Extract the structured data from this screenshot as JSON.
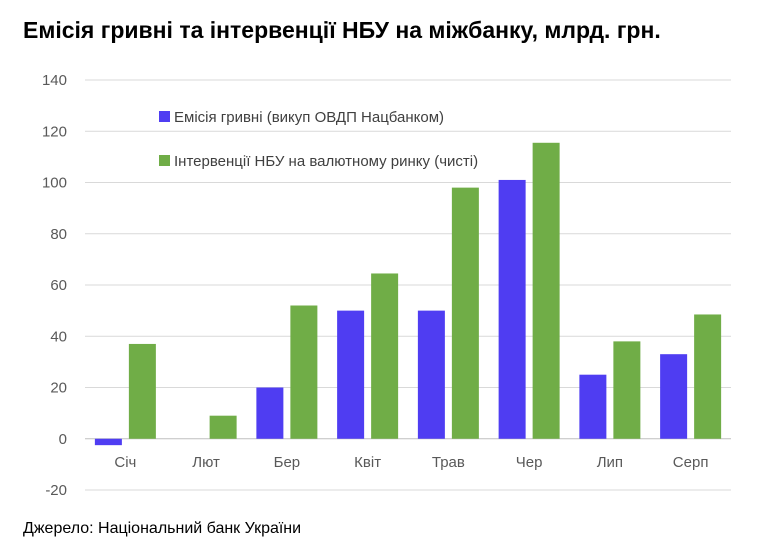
{
  "title": "Емісія гривні та інтервенції НБУ на міжбанку, млрд. грн.",
  "source": "Джерело: Національний банк України",
  "chart_data": {
    "type": "bar",
    "categories": [
      "Січ",
      "Лют",
      "Бер",
      "Квіт",
      "Трав",
      "Чер",
      "Лип",
      "Серп"
    ],
    "series": [
      {
        "name": "Емісія гривні (викуп ОВДП Нацбанком)",
        "color": "#4f3df2",
        "values": [
          -2.5,
          0,
          20,
          50,
          50,
          101,
          25,
          33
        ]
      },
      {
        "name": "Інтервенції НБУ на валютному ринку (чисті)",
        "color": "#70ad47",
        "values": [
          37,
          9,
          52,
          64.5,
          98,
          115.5,
          38,
          48.5
        ]
      }
    ],
    "y_ticks": [
      "-20",
      "0",
      "20",
      "40",
      "60",
      "80",
      "100",
      "120",
      "140"
    ],
    "ylim": [
      -20,
      140
    ],
    "grid": true,
    "legend_position": "top-left inside plot"
  }
}
